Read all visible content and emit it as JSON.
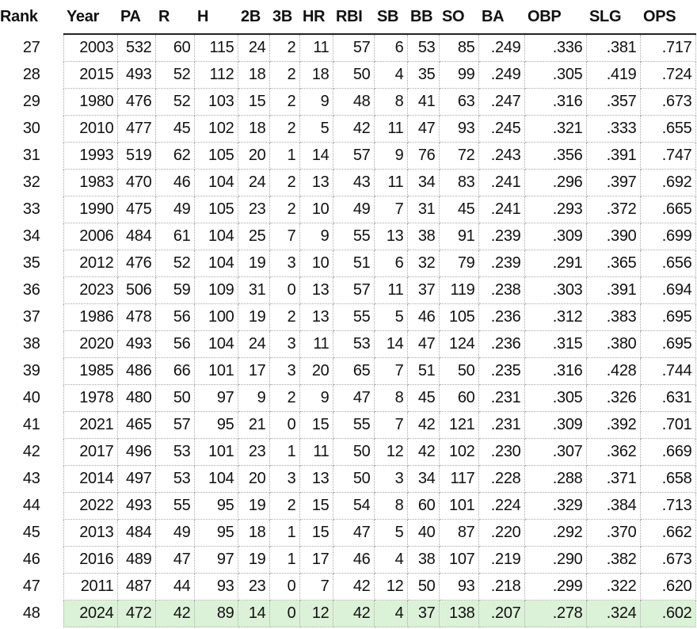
{
  "table": {
    "columns": [
      "Rank",
      "Year",
      "PA",
      "R",
      "H",
      "2B",
      "3B",
      "HR",
      "RBI",
      "SB",
      "BB",
      "SO",
      "BA",
      "OBP",
      "SLG",
      "OPS"
    ],
    "rows": [
      [
        "27",
        "2003",
        "532",
        "60",
        "115",
        "24",
        "2",
        "11",
        "57",
        "6",
        "53",
        "85",
        ".249",
        ".336",
        ".381",
        ".717"
      ],
      [
        "28",
        "2015",
        "493",
        "52",
        "112",
        "18",
        "2",
        "18",
        "50",
        "4",
        "35",
        "99",
        ".249",
        ".305",
        ".419",
        ".724"
      ],
      [
        "29",
        "1980",
        "476",
        "52",
        "103",
        "15",
        "2",
        "9",
        "48",
        "8",
        "41",
        "63",
        ".247",
        ".316",
        ".357",
        ".673"
      ],
      [
        "30",
        "2010",
        "477",
        "45",
        "102",
        "18",
        "2",
        "5",
        "42",
        "11",
        "47",
        "93",
        ".245",
        ".321",
        ".333",
        ".655"
      ],
      [
        "31",
        "1993",
        "519",
        "62",
        "105",
        "20",
        "1",
        "14",
        "57",
        "9",
        "76",
        "72",
        ".243",
        ".356",
        ".391",
        ".747"
      ],
      [
        "32",
        "1983",
        "470",
        "46",
        "104",
        "24",
        "2",
        "13",
        "43",
        "11",
        "34",
        "83",
        ".241",
        ".296",
        ".397",
        ".692"
      ],
      [
        "33",
        "1990",
        "475",
        "49",
        "105",
        "23",
        "2",
        "10",
        "49",
        "7",
        "31",
        "45",
        ".241",
        ".293",
        ".372",
        ".665"
      ],
      [
        "34",
        "2006",
        "484",
        "61",
        "104",
        "25",
        "7",
        "9",
        "55",
        "13",
        "38",
        "91",
        ".239",
        ".309",
        ".390",
        ".699"
      ],
      [
        "35",
        "2012",
        "476",
        "52",
        "104",
        "19",
        "3",
        "10",
        "51",
        "6",
        "32",
        "79",
        ".239",
        ".291",
        ".365",
        ".656"
      ],
      [
        "36",
        "2023",
        "506",
        "59",
        "109",
        "31",
        "0",
        "13",
        "57",
        "11",
        "37",
        "119",
        ".238",
        ".303",
        ".391",
        ".694"
      ],
      [
        "37",
        "1986",
        "478",
        "56",
        "100",
        "19",
        "2",
        "13",
        "55",
        "5",
        "46",
        "105",
        ".236",
        ".312",
        ".383",
        ".695"
      ],
      [
        "38",
        "2020",
        "493",
        "56",
        "104",
        "24",
        "3",
        "11",
        "53",
        "14",
        "47",
        "124",
        ".236",
        ".315",
        ".380",
        ".695"
      ],
      [
        "39",
        "1985",
        "486",
        "66",
        "101",
        "17",
        "3",
        "20",
        "65",
        "7",
        "51",
        "50",
        ".235",
        ".316",
        ".428",
        ".744"
      ],
      [
        "40",
        "1978",
        "480",
        "50",
        "97",
        "9",
        "2",
        "9",
        "47",
        "8",
        "45",
        "60",
        ".231",
        ".305",
        ".326",
        ".631"
      ],
      [
        "41",
        "2021",
        "465",
        "57",
        "95",
        "21",
        "0",
        "15",
        "55",
        "7",
        "42",
        "121",
        ".231",
        ".309",
        ".392",
        ".701"
      ],
      [
        "42",
        "2017",
        "496",
        "53",
        "101",
        "23",
        "1",
        "11",
        "50",
        "12",
        "42",
        "102",
        ".230",
        ".307",
        ".362",
        ".669"
      ],
      [
        "43",
        "2014",
        "497",
        "53",
        "104",
        "20",
        "3",
        "13",
        "50",
        "3",
        "34",
        "117",
        ".228",
        ".288",
        ".371",
        ".658"
      ],
      [
        "44",
        "2022",
        "493",
        "55",
        "95",
        "19",
        "2",
        "15",
        "54",
        "8",
        "60",
        "101",
        ".224",
        ".329",
        ".384",
        ".713"
      ],
      [
        "45",
        "2013",
        "484",
        "49",
        "95",
        "18",
        "1",
        "15",
        "47",
        "5",
        "40",
        "87",
        ".220",
        ".292",
        ".370",
        ".662"
      ],
      [
        "46",
        "2016",
        "489",
        "47",
        "97",
        "19",
        "1",
        "17",
        "46",
        "4",
        "38",
        "107",
        ".219",
        ".290",
        ".382",
        ".673"
      ],
      [
        "47",
        "2011",
        "487",
        "44",
        "93",
        "23",
        "0",
        "7",
        "42",
        "12",
        "50",
        "93",
        ".218",
        ".299",
        ".322",
        ".620"
      ],
      [
        "48",
        "2024",
        "472",
        "42",
        "89",
        "14",
        "0",
        "12",
        "42",
        "4",
        "37",
        "138",
        ".207",
        ".278",
        ".324",
        ".602"
      ]
    ]
  }
}
